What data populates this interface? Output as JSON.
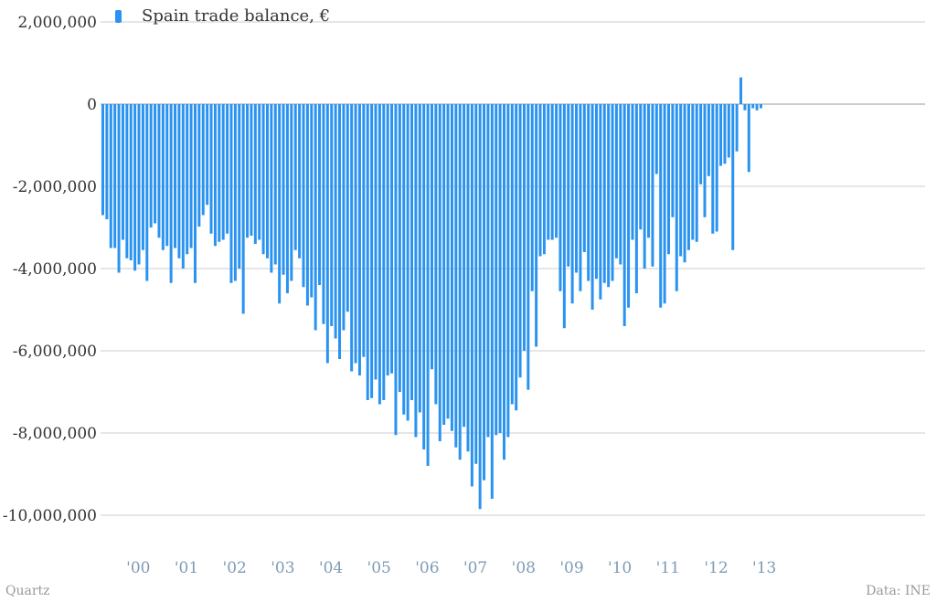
{
  "chart_data": {
    "type": "bar",
    "series": [
      {
        "name": "Spain trade balance, €",
        "color": "#2a93f0",
        "values": [
          -2700000,
          -2800000,
          -3500000,
          -3500000,
          -4100000,
          -3300000,
          -3750000,
          -3800000,
          -4050000,
          -3900000,
          -3550000,
          -4300000,
          -3000000,
          -2900000,
          -3250000,
          -3550000,
          -3450000,
          -4350000,
          -3500000,
          -3750000,
          -4000000,
          -3650000,
          -3500000,
          -4350000,
          -2980000,
          -2700000,
          -2450000,
          -3150000,
          -3450000,
          -3350000,
          -3300000,
          -3150000,
          -4350000,
          -4300000,
          -4000000,
          -5100000,
          -3250000,
          -3200000,
          -3400000,
          -3300000,
          -3650000,
          -3750000,
          -4100000,
          -3900000,
          -4850000,
          -4150000,
          -4600000,
          -4300000,
          -3550000,
          -3750000,
          -4450000,
          -4900000,
          -4700000,
          -5500000,
          -4400000,
          -5350000,
          -6300000,
          -5400000,
          -5700000,
          -6200000,
          -5500000,
          -5050000,
          -6500000,
          -6300000,
          -6600000,
          -6150000,
          -7200000,
          -7150000,
          -6700000,
          -7300000,
          -7200000,
          -6600000,
          -6550000,
          -8050000,
          -7000000,
          -7550000,
          -7700000,
          -7200000,
          -8100000,
          -7500000,
          -8400000,
          -8800000,
          -6450000,
          -7300000,
          -8200000,
          -7800000,
          -7650000,
          -7950000,
          -8350000,
          -8650000,
          -7850000,
          -8450000,
          -9300000,
          -8750000,
          -9850000,
          -9150000,
          -8100000,
          -9600000,
          -8050000,
          -8000000,
          -8650000,
          -8100000,
          -7300000,
          -7450000,
          -6650000,
          -6000000,
          -6950000,
          -4550000,
          -5900000,
          -3700000,
          -3650000,
          -3300000,
          -3300000,
          -3250000,
          -4550000,
          -5450000,
          -3950000,
          -4850000,
          -4100000,
          -4550000,
          -3600000,
          -4300000,
          -5000000,
          -4250000,
          -4750000,
          -4350000,
          -4450000,
          -4300000,
          -3750000,
          -3900000,
          -5400000,
          -4950000,
          -3300000,
          -4600000,
          -3050000,
          -4000000,
          -3250000,
          -3950000,
          -1700000,
          -4950000,
          -4850000,
          -3650000,
          -2750000,
          -4550000,
          -3700000,
          -3850000,
          -3550000,
          -3300000,
          -3350000,
          -1950000,
          -2750000,
          -1750000,
          -3150000,
          -3100000,
          -1500000,
          -1450000,
          -1300000,
          -3550000,
          -1150000,
          650000,
          -150000,
          -1650000,
          -100000,
          -150000,
          -100000
        ]
      }
    ],
    "x_tick_labels": [
      "'00",
      "'01",
      "'02",
      "'03",
      "'04",
      "'05",
      "'06",
      "'07",
      "'08",
      "'09",
      "'10",
      "'11",
      "'12",
      "'13"
    ],
    "y_tick_labels": [
      "2,000,000",
      "0",
      "-2,000,000",
      "-4,000,000",
      "-6,000,000",
      "-8,000,000",
      "-10,000,000"
    ],
    "y_ticks": [
      2000000,
      0,
      -2000000,
      -4000000,
      -6000000,
      -8000000,
      -10000000
    ],
    "ylim": [
      -11000000,
      2000000
    ],
    "x_start_year": 2000,
    "grid": true,
    "legend_position": "top-left",
    "source_left": "Quartz",
    "source_right": "Data: INE",
    "grid_color": "#cccccc",
    "zero_line_color": "#999999",
    "tick_color_x": "#7f9bb5"
  }
}
